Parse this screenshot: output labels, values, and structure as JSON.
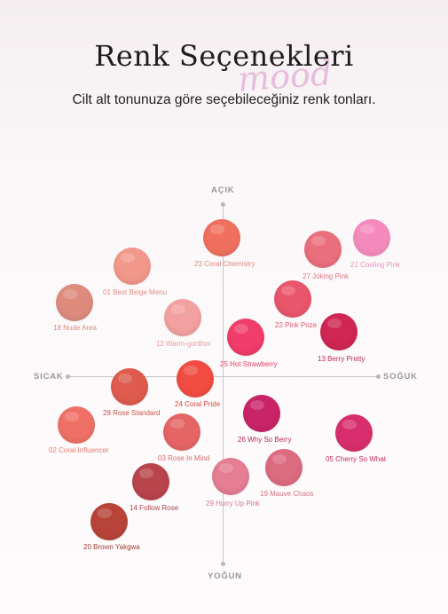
{
  "header": {
    "title": "Renk Seçenekleri",
    "watermark": "mood",
    "subtitle": "Cilt alt tonunuza göre seçebileceğiniz renk tonları."
  },
  "axes": {
    "top": "AÇIK",
    "bottom": "YOĞUN",
    "left": "SICAK",
    "right": "SOĞUK"
  },
  "shades": [
    {
      "name": "23 Coral Chemistry",
      "color": "#f0705f",
      "label_color": "#e08a80"
    },
    {
      "name": "21 Cooling Pink",
      "color": "#f58bbd",
      "label_color": "#f08fbf"
    },
    {
      "name": "27 Joking Pink",
      "color": "#ea6f7c",
      "label_color": "#e07481"
    },
    {
      "name": "01 Best Beige Menu",
      "color": "#f2988a",
      "label_color": "#e58d87"
    },
    {
      "name": "22 Pink Prize",
      "color": "#e9556b",
      "label_color": "#de5a6e"
    },
    {
      "name": "18 Nude Area",
      "color": "#de8b7e",
      "label_color": "#d88a80"
    },
    {
      "name": "12 Warm-gorithm",
      "color": "#f3a0a1",
      "label_color": "#e99aa0"
    },
    {
      "name": "25 Hot Strawberry",
      "color": "#f03d69",
      "label_color": "#e23d66"
    },
    {
      "name": "13 Berry Pretty",
      "color": "#cf2654",
      "label_color": "#c22a55"
    },
    {
      "name": "28 Rose Standard",
      "color": "#de5b4e",
      "label_color": "#c9544c"
    },
    {
      "name": "24 Coral Pride",
      "color": "#f14c41",
      "label_color": "#d94a42"
    },
    {
      "name": "26 Why So Berry",
      "color": "#c92468",
      "label_color": "#b62a61"
    },
    {
      "name": "02 Coral Influencer",
      "color": "#ef7066",
      "label_color": "#e57b73"
    },
    {
      "name": "03 Rose In Mind",
      "color": "#e56565",
      "label_color": "#d86a6a"
    },
    {
      "name": "05 Cherry So What",
      "color": "#d92e6d",
      "label_color": "#c92d66"
    },
    {
      "name": "19 Mauve Chaos",
      "color": "#dd6b80",
      "label_color": "#d17183"
    },
    {
      "name": "29 Hurry Up Pink",
      "color": "#e57d93",
      "label_color": "#d27a8e"
    },
    {
      "name": "14 Follow Rose",
      "color": "#b9444c",
      "label_color": "#a94349"
    },
    {
      "name": "20 Brown Yakgwa",
      "color": "#b84439",
      "label_color": "#9e3d34"
    }
  ]
}
